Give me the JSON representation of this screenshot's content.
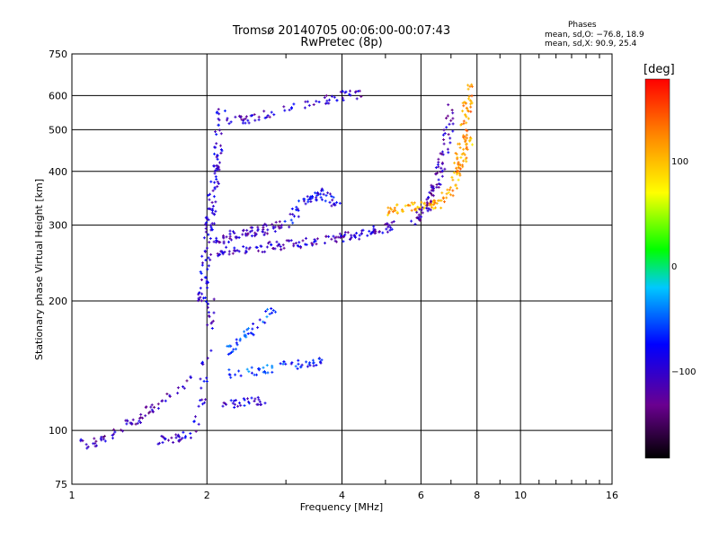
{
  "header": {
    "title_line1": "Tromsø 20140705 00:06:00-00:07:43",
    "title_line2": "RwPretec (8p)",
    "phase_heading": "Phases",
    "phase_o": "mean, sd,O: −76.8, 18.9",
    "phase_x": "mean, sd,X:  90.9, 25.4"
  },
  "colorbar": {
    "unit_label": "[deg]",
    "min": -180,
    "max": 180,
    "ticks": [
      "100",
      "0",
      "−100"
    ],
    "tick_values": [
      100,
      0,
      -100
    ]
  },
  "chart_data": {
    "type": "scatter",
    "title": "Tromsø 20140705 00:06:00-00:07:43",
    "subtitle": "RwPretec (8p)",
    "xlabel": "Frequency [MHz]",
    "ylabel": "Stationary phase Virtual Height [km]",
    "xscale": "log",
    "yscale": "log",
    "xlim": [
      1,
      16
    ],
    "ylim": [
      75,
      750
    ],
    "x_ticks": [
      1,
      2,
      4,
      6,
      8,
      10,
      16
    ],
    "x_tick_labels": [
      "1",
      "2",
      "4",
      "6",
      "8",
      "10",
      "16"
    ],
    "y_ticks": [
      75,
      100,
      200,
      300,
      400,
      500,
      600,
      750
    ],
    "y_tick_labels": [
      "75",
      "100",
      "200",
      "300",
      "400",
      "500",
      "600",
      "750"
    ],
    "grid": true,
    "color_encoding": "phase [deg]",
    "traces": [
      {
        "name": "",
        "x": [
          1.0,
          1.1,
          1.2,
          1.35,
          1.5,
          1.7,
          1.9
        ],
        "y": [
          95,
          93,
          97,
          104,
          112,
          122,
          135
        ],
        "phase_mean": -110,
        "count": 70
      },
      {
        "name": "",
        "x": [
          1.55,
          1.7,
          1.85,
          1.95,
          2.0,
          2.05
        ],
        "y": [
          95,
          96,
          97,
          120,
          150,
          200
        ],
        "phase_mean": -95,
        "count": 60
      },
      {
        "name": "",
        "x": [
          1.95,
          2.0,
          2.05,
          2.1,
          2.15
        ],
        "y": [
          200,
          260,
          330,
          420,
          560
        ],
        "phase_mean": -90,
        "count": 120
      },
      {
        "name": "",
        "x": [
          2.1,
          2.4,
          2.8,
          3.2,
          3.8,
          4.3,
          4.8,
          5.3
        ],
        "y": [
          260,
          262,
          268,
          272,
          278,
          285,
          292,
          300
        ],
        "phase_mean": -100,
        "count": 140
      },
      {
        "name": "",
        "x": [
          2.1,
          2.3,
          2.6,
          2.9
        ],
        "y": [
          275,
          285,
          290,
          300
        ],
        "phase_mean": -105,
        "count": 70
      },
      {
        "name": "",
        "x": [
          3.0,
          3.3,
          3.6,
          3.9
        ],
        "y": [
          300,
          340,
          360,
          330
        ],
        "phase_mean": -85,
        "count": 60
      },
      {
        "name": "",
        "x": [
          5.0,
          5.5,
          6.0,
          6.5,
          7.0,
          7.4,
          7.7
        ],
        "y": [
          320,
          330,
          330,
          335,
          360,
          420,
          480
        ],
        "phase_mean": 110,
        "count": 110
      },
      {
        "name": "",
        "x": [
          5.8,
          6.2,
          6.5,
          6.8,
          7.0
        ],
        "y": [
          305,
          330,
          380,
          450,
          560
        ],
        "phase_mean": -110,
        "count": 90
      },
      {
        "name": "",
        "x": [
          7.2,
          7.4,
          7.6,
          7.8
        ],
        "y": [
          380,
          470,
          560,
          640
        ],
        "phase_mean": 120,
        "count": 60
      },
      {
        "name": "",
        "x": [
          2.2,
          2.5,
          3.0,
          3.5,
          4.0,
          4.4
        ],
        "y": [
          520,
          530,
          555,
          580,
          600,
          605
        ],
        "phase_mean": -100,
        "count": 70
      },
      {
        "name": "",
        "x": [
          2.2,
          2.4,
          2.6,
          2.8
        ],
        "y": [
          115,
          116,
          117,
          118
        ],
        "phase_mean": -90,
        "count": 30
      },
      {
        "name": "",
        "x": [
          2.2,
          2.4,
          2.6,
          2.8,
          3.0
        ],
        "y": [
          135,
          136,
          138,
          140,
          142
        ],
        "phase_mean": -50,
        "count": 30
      },
      {
        "name": "",
        "x": [
          3.0,
          3.2,
          3.4,
          3.6
        ],
        "y": [
          140,
          142,
          143,
          144
        ],
        "phase_mean": -70,
        "count": 25
      },
      {
        "name": "",
        "x": [
          2.2,
          2.5,
          2.8
        ],
        "y": [
          150,
          170,
          190
        ],
        "phase_mean": -60,
        "count": 40
      }
    ]
  }
}
